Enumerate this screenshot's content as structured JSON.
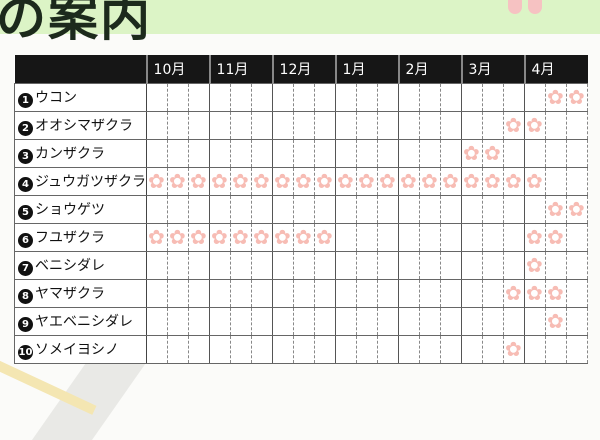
{
  "title": "の案内",
  "months": [
    "10月",
    "11月",
    "12月",
    "1月",
    "2月",
    "3月",
    "4月"
  ],
  "rows": [
    {
      "num": "1",
      "name": "ウコン",
      "bloom": [
        19,
        20
      ]
    },
    {
      "num": "2",
      "name": "オオシマザクラ",
      "bloom": [
        17,
        18
      ]
    },
    {
      "num": "3",
      "name": "カンザクラ",
      "bloom": [
        15,
        16
      ]
    },
    {
      "num": "4",
      "name": "ジュウガツザクラ",
      "bloom": [
        0,
        1,
        2,
        3,
        4,
        5,
        6,
        7,
        8,
        9,
        10,
        11,
        12,
        13,
        14,
        15,
        16,
        17,
        18
      ]
    },
    {
      "num": "5",
      "name": "ショウゲツ",
      "bloom": [
        19,
        20
      ]
    },
    {
      "num": "6",
      "name": "フユザクラ",
      "bloom": [
        0,
        1,
        2,
        3,
        4,
        5,
        6,
        7,
        8,
        18,
        19
      ]
    },
    {
      "num": "7",
      "name": "ベニシダレ",
      "bloom": [
        18
      ]
    },
    {
      "num": "8",
      "name": "ヤマザクラ",
      "bloom": [
        17,
        18,
        19
      ]
    },
    {
      "num": "9",
      "name": "ヤエベニシダレ",
      "bloom": [
        19
      ]
    },
    {
      "num": "10",
      "name": "ソメイヨシノ",
      "bloom": [
        17
      ]
    }
  ],
  "colors": {
    "blossom": "#f7bcb4",
    "header": "#161616",
    "band": "#dcf4c6"
  },
  "icons": {
    "bloom": "cherry-blossom-icon"
  }
}
